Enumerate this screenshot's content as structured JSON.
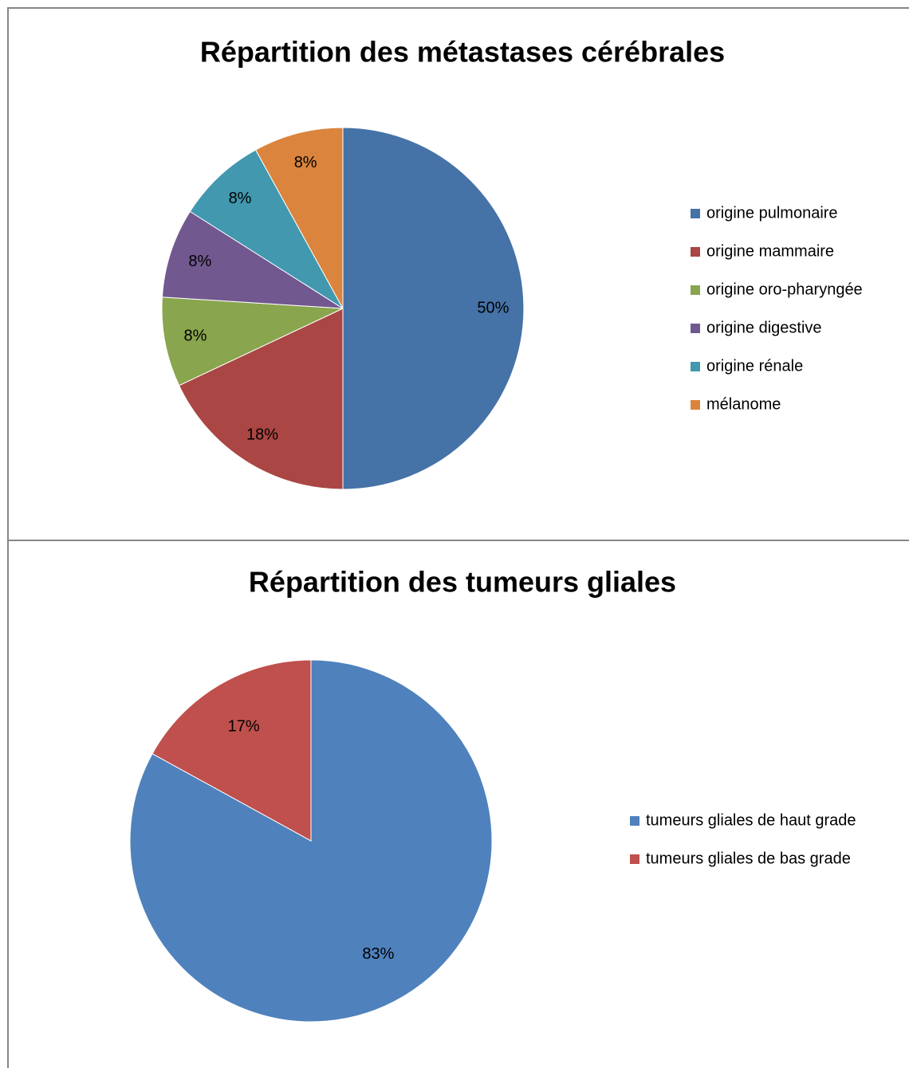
{
  "chart_data": [
    {
      "type": "pie",
      "title": "Répartition des métastases cérébrales",
      "categories": [
        "origine pulmonaire",
        "origine mammaire",
        "origine oro-pharyngée",
        "origine digestive",
        "origine rénale",
        "mélanome"
      ],
      "values": [
        50,
        18,
        8,
        8,
        8,
        8
      ],
      "value_labels": [
        "50%",
        "18%",
        "8%",
        "8%",
        "8%",
        "8%"
      ],
      "colors": [
        "#4572a7",
        "#aa4643",
        "#89a54e",
        "#71588f",
        "#4198af",
        "#db843d"
      ],
      "legend": "right"
    },
    {
      "type": "pie",
      "title": "Répartition des tumeurs gliales",
      "categories": [
        "tumeurs gliales de haut grade",
        "tumeurs gliales de bas grade"
      ],
      "values": [
        83,
        17
      ],
      "value_labels": [
        "83%",
        "17%"
      ],
      "colors": [
        "#4f81bd",
        "#c0504d"
      ],
      "legend": "right"
    }
  ]
}
